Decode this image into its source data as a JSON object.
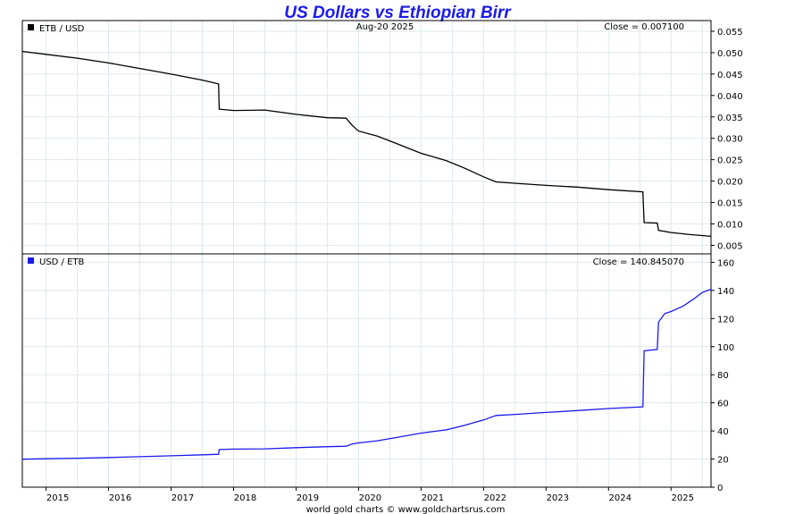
{
  "title": "US Dollars vs Ethiopian Birr",
  "date": "Aug-20  2025",
  "footer": "world gold charts © www.goldchartsrus.com",
  "x_ticks": [
    "2015",
    "2016",
    "2017",
    "2018",
    "2019",
    "2020",
    "2021",
    "2022",
    "2023",
    "2024",
    "2025"
  ],
  "chart_data": [
    {
      "type": "line",
      "legend": "ETB / USD",
      "legend_position": "top-left",
      "close_label": "Close = 0.007100",
      "color": "#000000",
      "x_range": [
        2014.62,
        2025.64
      ],
      "ylim": [
        0.003,
        0.0575
      ],
      "y_ticks": [
        0.005,
        0.01,
        0.015,
        0.02,
        0.025,
        0.03,
        0.035,
        0.04,
        0.045,
        0.05,
        0.055
      ],
      "y_tick_labels": [
        "0.005",
        "0.010",
        "0.015",
        "0.020",
        "0.025",
        "0.030",
        "0.035",
        "0.040",
        "0.045",
        "0.050",
        "0.055"
      ],
      "grid": true,
      "points": [
        [
          2014.62,
          0.0503
        ],
        [
          2015.0,
          0.0496
        ],
        [
          2015.5,
          0.0487
        ],
        [
          2016.0,
          0.0476
        ],
        [
          2016.5,
          0.0463
        ],
        [
          2017.0,
          0.045
        ],
        [
          2017.5,
          0.0436
        ],
        [
          2017.76,
          0.0427
        ],
        [
          2017.77,
          0.0368
        ],
        [
          2018.0,
          0.0365
        ],
        [
          2018.5,
          0.0366
        ],
        [
          2019.0,
          0.0356
        ],
        [
          2019.5,
          0.0348
        ],
        [
          2019.8,
          0.0347
        ],
        [
          2019.9,
          0.033
        ],
        [
          2020.0,
          0.0317
        ],
        [
          2020.3,
          0.0305
        ],
        [
          2020.6,
          0.0288
        ],
        [
          2021.0,
          0.0265
        ],
        [
          2021.4,
          0.0248
        ],
        [
          2021.7,
          0.023
        ],
        [
          2022.0,
          0.021
        ],
        [
          2022.2,
          0.0198
        ],
        [
          2022.5,
          0.0195
        ],
        [
          2023.0,
          0.019
        ],
        [
          2023.5,
          0.0186
        ],
        [
          2024.0,
          0.018
        ],
        [
          2024.55,
          0.0175
        ],
        [
          2024.57,
          0.0103
        ],
        [
          2024.78,
          0.0102
        ],
        [
          2024.8,
          0.0085
        ],
        [
          2025.0,
          0.008
        ],
        [
          2025.3,
          0.0075
        ],
        [
          2025.64,
          0.0071
        ]
      ]
    },
    {
      "type": "line",
      "legend": "USD / ETB",
      "legend_position": "top-left",
      "close_label": "Close = 140.845070",
      "color": "#1a1aee",
      "x_range": [
        2014.62,
        2025.64
      ],
      "ylim": [
        0,
        166
      ],
      "y_ticks": [
        0,
        20,
        40,
        60,
        80,
        100,
        120,
        140,
        160
      ],
      "y_tick_labels": [
        "0",
        "20",
        "40",
        "60",
        "80",
        "100",
        "120",
        "140",
        "160"
      ],
      "grid": true,
      "points": [
        [
          2014.62,
          19.9
        ],
        [
          2015.0,
          20.2
        ],
        [
          2015.5,
          20.6
        ],
        [
          2016.0,
          21.1
        ],
        [
          2016.5,
          21.7
        ],
        [
          2017.0,
          22.3
        ],
        [
          2017.5,
          23.0
        ],
        [
          2017.76,
          23.4
        ],
        [
          2017.77,
          26.8
        ],
        [
          2018.0,
          27.1
        ],
        [
          2018.5,
          27.3
        ],
        [
          2019.0,
          28.1
        ],
        [
          2019.5,
          28.8
        ],
        [
          2019.8,
          29.1
        ],
        [
          2019.9,
          30.8
        ],
        [
          2020.0,
          31.5
        ],
        [
          2020.3,
          33.0
        ],
        [
          2020.6,
          35.3
        ],
        [
          2021.0,
          38.5
        ],
        [
          2021.4,
          40.8
        ],
        [
          2021.7,
          44.0
        ],
        [
          2022.0,
          47.8
        ],
        [
          2022.2,
          51.0
        ],
        [
          2022.5,
          51.8
        ],
        [
          2023.0,
          53.2
        ],
        [
          2023.5,
          54.5
        ],
        [
          2024.0,
          56.0
        ],
        [
          2024.55,
          57.2
        ],
        [
          2024.57,
          97.0
        ],
        [
          2024.78,
          98.0
        ],
        [
          2024.8,
          117.5
        ],
        [
          2024.9,
          123.5
        ],
        [
          2025.0,
          125.0
        ],
        [
          2025.2,
          129.0
        ],
        [
          2025.35,
          133.5
        ],
        [
          2025.5,
          138.5
        ],
        [
          2025.64,
          140.8
        ]
      ]
    }
  ]
}
